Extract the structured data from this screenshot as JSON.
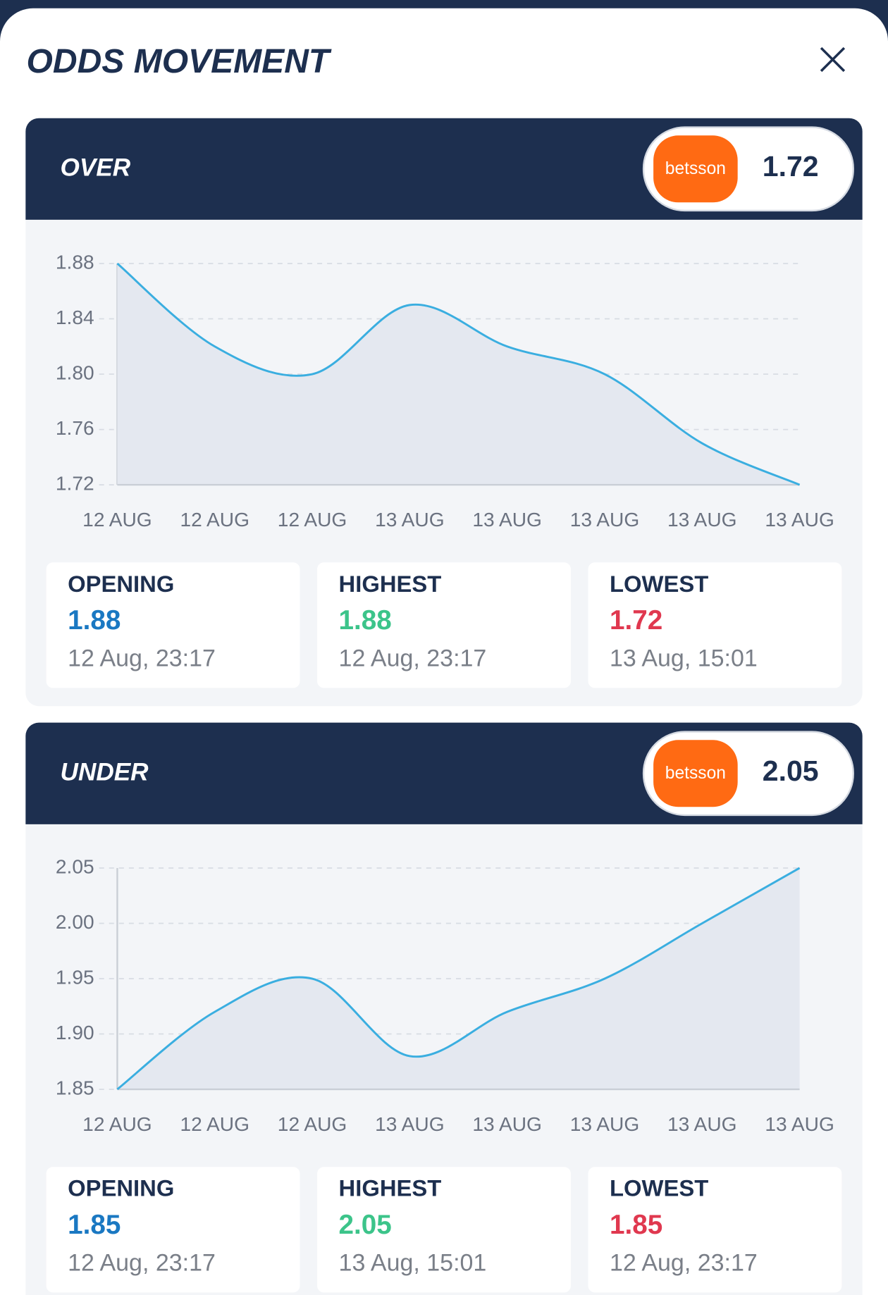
{
  "header": {
    "title": "ODDS MOVEMENT"
  },
  "panels": [
    {
      "label": "OVER",
      "bookmaker": "betsson",
      "odds": "1.72",
      "chart": {
        "type": "area",
        "categories": [
          "12 AUG",
          "12 AUG",
          "12 AUG",
          "13 AUG",
          "13 AUG",
          "13 AUG",
          "13 AUG",
          "13 AUG"
        ],
        "values": [
          1.88,
          1.82,
          1.8,
          1.85,
          1.82,
          1.8,
          1.75,
          1.72
        ],
        "ylim": [
          1.72,
          1.88
        ],
        "yticks": [
          1.72,
          1.76,
          {
            "value": 1.8,
            "label": "1.80"
          },
          1.84,
          1.88
        ],
        "color": "#3aaee0",
        "grid": true
      },
      "stats": [
        {
          "label": "OPENING",
          "value": "1.88",
          "time": "12 Aug, 23:17"
        },
        {
          "label": "HIGHEST",
          "value": "1.88",
          "time": "12 Aug, 23:17"
        },
        {
          "label": "LOWEST",
          "value": "1.72",
          "time": "13 Aug, 15:01"
        }
      ]
    },
    {
      "label": "UNDER",
      "bookmaker": "betsson",
      "odds": "2.05",
      "chart": {
        "type": "area",
        "categories": [
          "12 AUG",
          "12 AUG",
          "12 AUG",
          "13 AUG",
          "13 AUG",
          "13 AUG",
          "13 AUG",
          "13 AUG"
        ],
        "values": [
          1.85,
          1.92,
          1.95,
          1.88,
          1.92,
          1.95,
          2.0,
          2.05
        ],
        "ylim": [
          1.85,
          2.05
        ],
        "yticks": [
          1.85,
          {
            "value": 1.9,
            "label": "1.90"
          },
          1.95,
          {
            "value": 2.0,
            "label": "2.00"
          },
          2.05
        ],
        "color": "#3aaee0",
        "grid": true
      },
      "stats": [
        {
          "label": "OPENING",
          "value": "1.85",
          "time": "12 Aug, 23:17"
        },
        {
          "label": "HIGHEST",
          "value": "2.05",
          "time": "13 Aug, 15:01"
        },
        {
          "label": "LOWEST",
          "value": "1.85",
          "time": "12 Aug, 23:17"
        }
      ]
    }
  ]
}
